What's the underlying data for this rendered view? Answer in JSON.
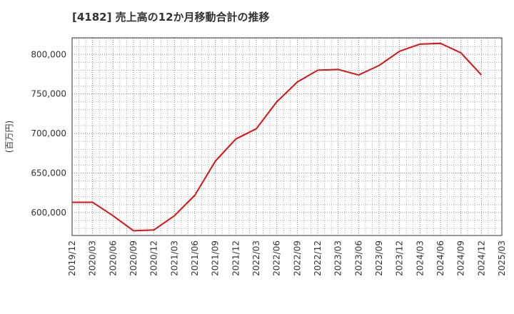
{
  "chart_data": {
    "type": "line",
    "title": "[4182]  売上高の12か月移動合計の推移",
    "xlabel": "",
    "ylabel": "(百万円)",
    "ylim": [
      571000,
      821000
    ],
    "yticks": [
      600000,
      650000,
      700000,
      750000,
      800000
    ],
    "ytick_labels": [
      "600,000",
      "650,000",
      "700,000",
      "750,000",
      "800,000"
    ],
    "xticks": [
      "2019/12",
      "2020/03",
      "2020/06",
      "2020/09",
      "2020/12",
      "2021/03",
      "2021/06",
      "2021/09",
      "2021/12",
      "2022/03",
      "2022/06",
      "2022/09",
      "2022/12",
      "2023/03",
      "2023/06",
      "2023/09",
      "2023/12",
      "2024/03",
      "2024/06",
      "2024/09",
      "2024/12",
      "2025/03"
    ],
    "grid": true,
    "line_color": "#dd1111",
    "series": [
      {
        "name": "売上高の12か月移動合計",
        "x": [
          "2019/12",
          "2020/03",
          "2020/06",
          "2020/09",
          "2020/12",
          "2021/03",
          "2021/06",
          "2021/09",
          "2021/12",
          "2022/03",
          "2022/06",
          "2022/09",
          "2022/12",
          "2023/03",
          "2023/06",
          "2023/09",
          "2023/12",
          "2024/03",
          "2024/06",
          "2024/09",
          "2024/12"
        ],
        "values": [
          613000,
          613000,
          596000,
          577000,
          578000,
          596000,
          622000,
          665000,
          693000,
          706000,
          740000,
          765000,
          780000,
          781000,
          774000,
          786000,
          804000,
          813000,
          814000,
          802000,
          774000
        ]
      }
    ]
  }
}
